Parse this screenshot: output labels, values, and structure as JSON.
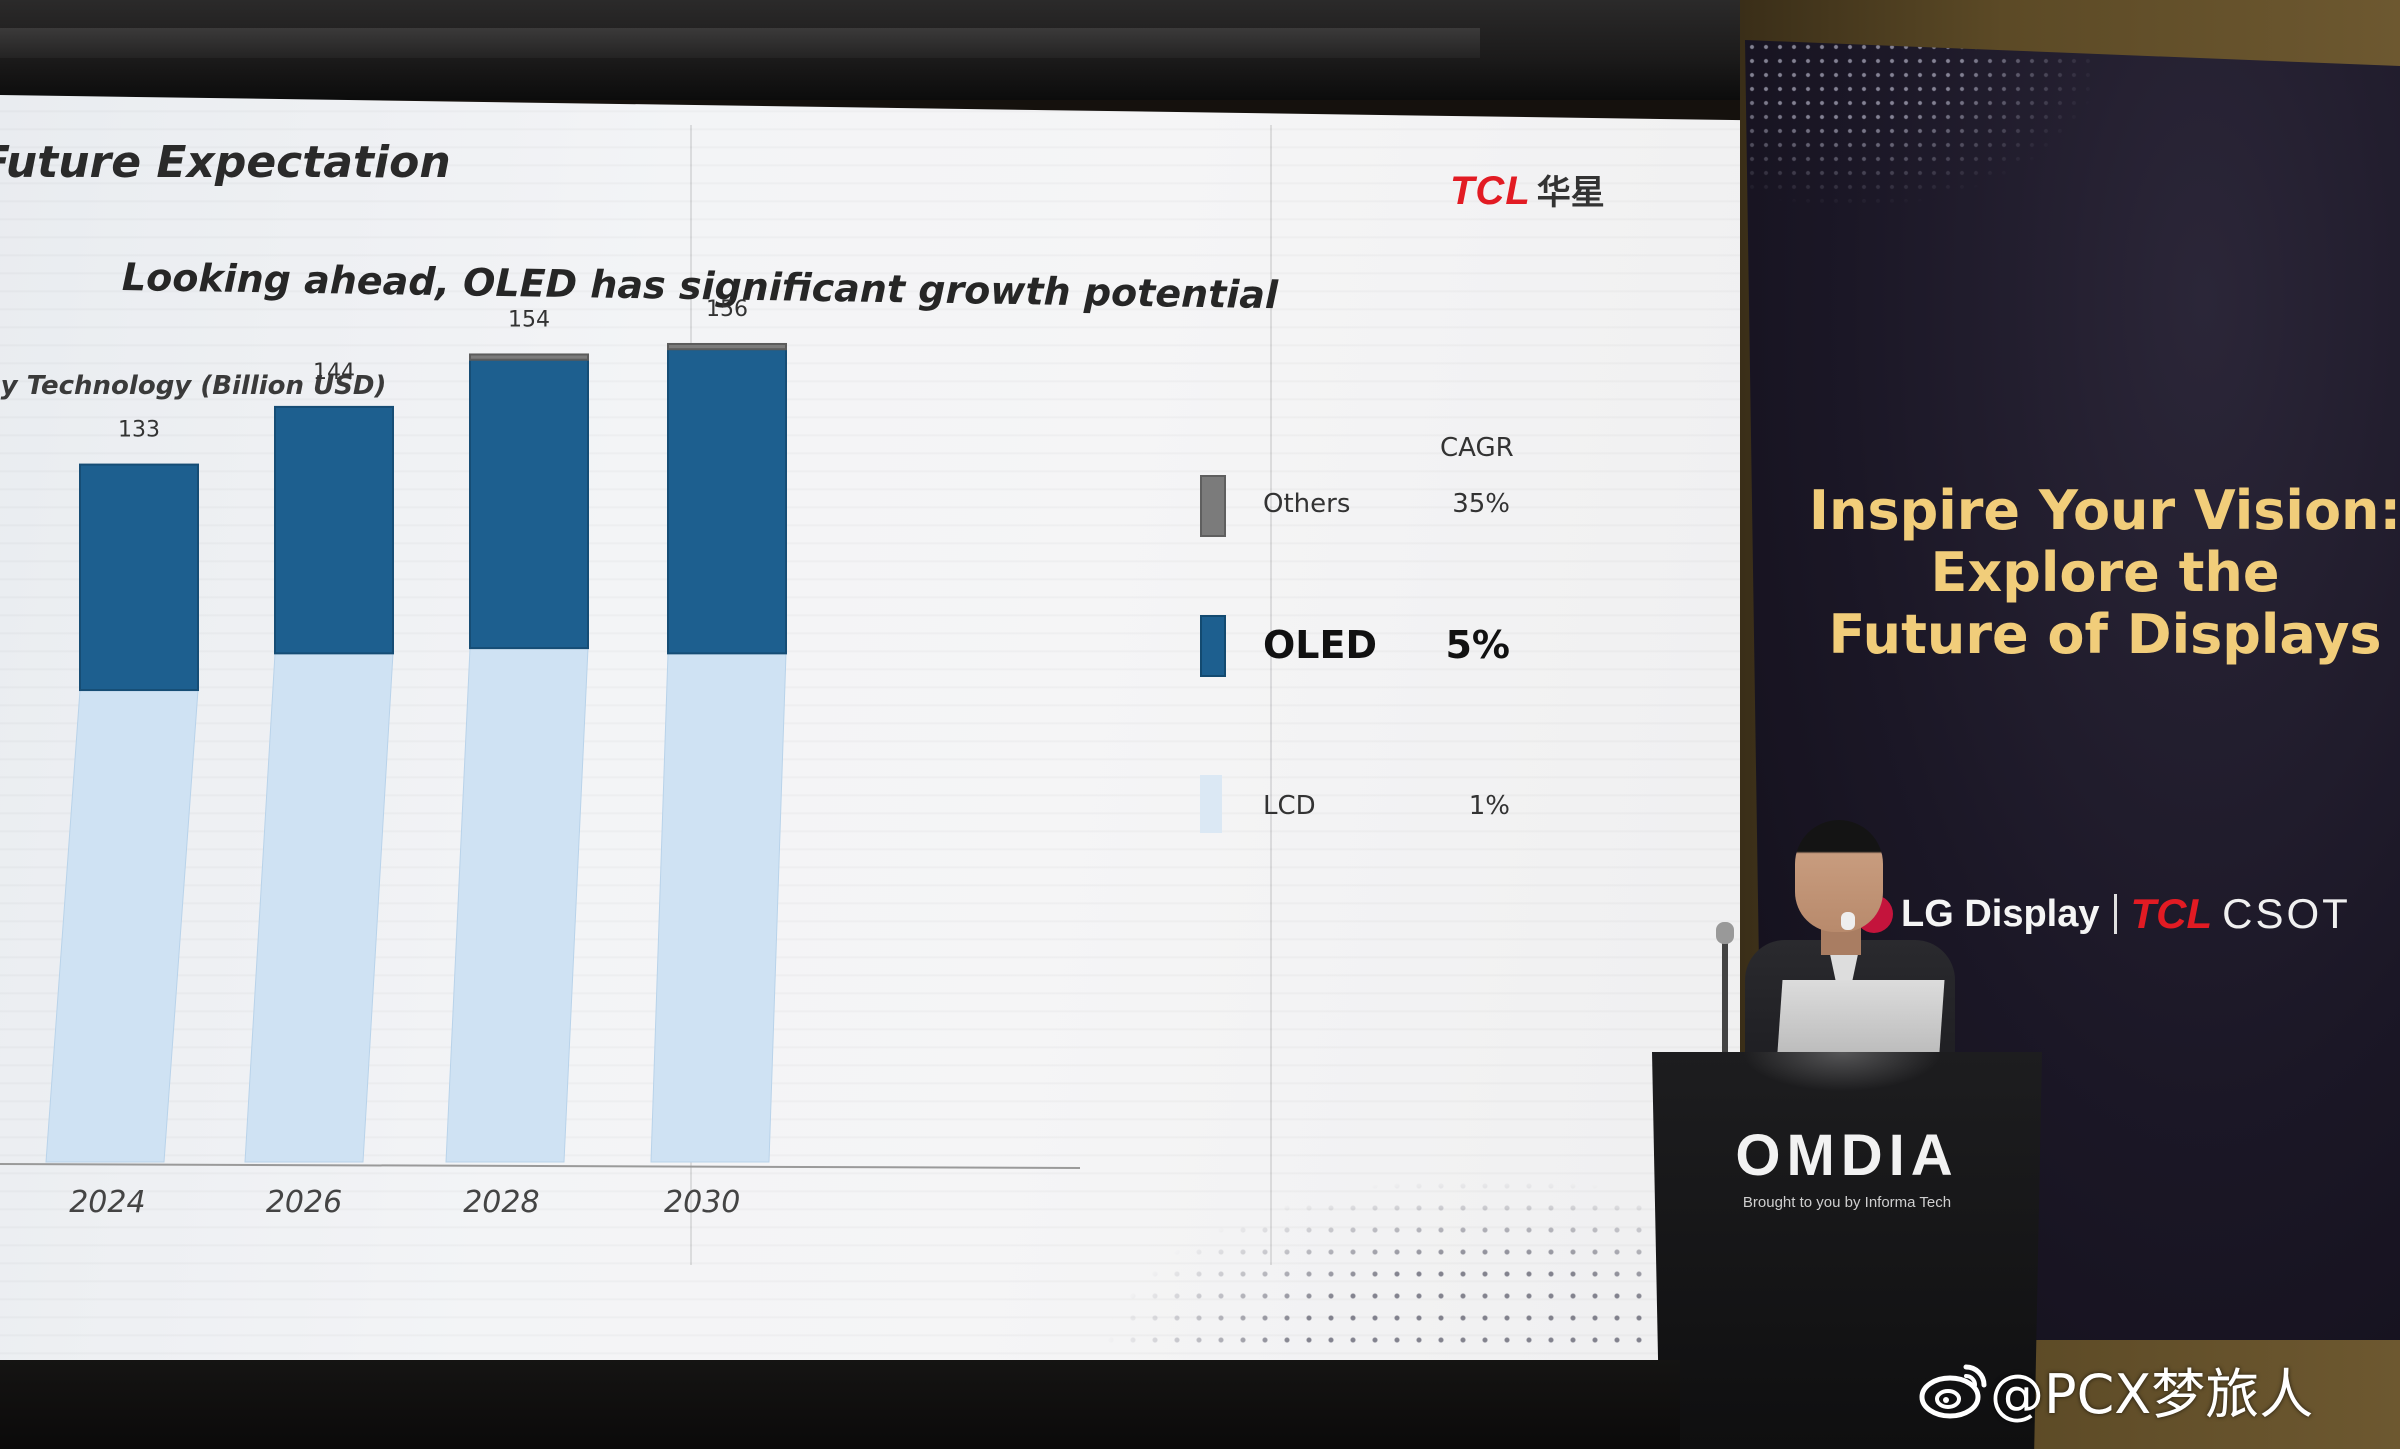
{
  "slide": {
    "title": "Future Expectation",
    "logo": {
      "tcl": "TCL",
      "cn": "华星"
    },
    "subtitle": "Looking ahead, OLED has significant growth potential",
    "chart_caption": "by Technology (Billion USD)",
    "cagr_header": "CAGR",
    "legend": [
      {
        "label": "Others",
        "cagr": "35%",
        "color": "#7b7b7b"
      },
      {
        "label": "OLED",
        "cagr": "5%",
        "color": "#1d5f8f"
      },
      {
        "label": "LCD",
        "cagr": "1%",
        "color": "#cfe2f3"
      }
    ]
  },
  "chart_data": {
    "type": "bar",
    "stacked": true,
    "categories": [
      "2024",
      "2026",
      "2028",
      "2030"
    ],
    "totals": [
      133,
      144,
      154,
      156
    ],
    "series": [
      {
        "name": "LCD",
        "values": [
          90,
          97,
          98,
          97
        ],
        "color": "#cfe2f3"
      },
      {
        "name": "OLED",
        "values": [
          43,
          47,
          55,
          58
        ],
        "color": "#1d5f8f"
      },
      {
        "name": "Others",
        "values": [
          0,
          0,
          1,
          1
        ],
        "color": "#7b7b7b"
      }
    ],
    "xlabel": "",
    "ylabel": "",
    "ylim": [
      0,
      160
    ],
    "grid": false,
    "legend_position": "right"
  },
  "banner": {
    "headline": [
      "Inspire Your Vision:",
      "Explore the",
      "Future of Displays"
    ],
    "sponsor_lg": "LG Display",
    "sponsor_tcl": "TCL",
    "sponsor_csot": "CSOT",
    "colors": {
      "headline": "#f1cd7a",
      "background": "#1b1726"
    }
  },
  "podium": {
    "brand": "OMDIA",
    "tagline": "Brought to you by Informa Tech"
  },
  "watermark": {
    "text": "@PCX梦旅人",
    "icon": "weibo-icon"
  }
}
